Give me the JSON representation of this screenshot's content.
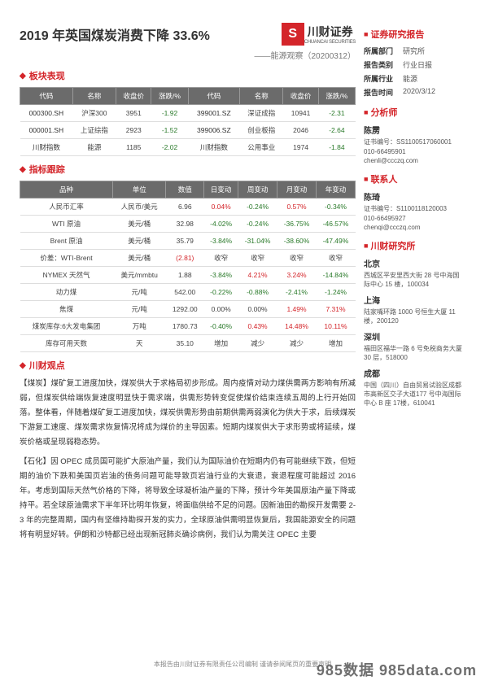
{
  "header": {
    "title": "2019 年英国煤炭消费下降 33.6%",
    "subtitle": "——能源观察（20200312）",
    "logo_char": "S",
    "logo_name": "川财证券",
    "logo_sub": "CHUANCAI SECURITIES"
  },
  "sections": {
    "block_perf": "板块表现",
    "indicator": "指标跟踪",
    "viewpoint": "川财观点"
  },
  "table1": {
    "headers": [
      "代码",
      "名称",
      "收盘价",
      "涨跌/%",
      "代码",
      "名称",
      "收盘价",
      "涨跌/%"
    ],
    "rows": [
      [
        "000300.SH",
        "沪深300",
        "3951",
        "-1.92",
        "399001.SZ",
        "深证成指",
        "10941",
        "-2.31"
      ],
      [
        "000001.SH",
        "上证综指",
        "2923",
        "-1.52",
        "399006.SZ",
        "创业板指",
        "2046",
        "-2.64"
      ],
      [
        "川财指数",
        "能源",
        "1185",
        "-2.02",
        "川财指数",
        "公用事业",
        "1974",
        "-1.84"
      ]
    ]
  },
  "table2": {
    "headers": [
      "品种",
      "单位",
      "数值",
      "日变动",
      "周变动",
      "月变动",
      "年变动"
    ],
    "rows": [
      {
        "c": [
          "人民币汇率",
          "人民币/美元",
          "6.96",
          "0.04%",
          "-0.24%",
          "0.57%",
          "-0.34%"
        ],
        "cls": [
          "",
          "",
          "",
          "pos",
          "neg",
          "pos",
          "neg"
        ]
      },
      {
        "c": [
          "WTI 原油",
          "美元/桶",
          "32.98",
          "-4.02%",
          "-0.24%",
          "-36.75%",
          "-46.57%"
        ],
        "cls": [
          "",
          "",
          "",
          "neg",
          "neg",
          "neg",
          "neg"
        ]
      },
      {
        "c": [
          "Brent 原油",
          "美元/桶",
          "35.79",
          "-3.84%",
          "-31.04%",
          "-38.60%",
          "-47.49%"
        ],
        "cls": [
          "",
          "",
          "",
          "neg",
          "neg",
          "neg",
          "neg"
        ]
      },
      {
        "c": [
          "价差：WTI-Brent",
          "美元/桶",
          "(2.81)",
          "收窄",
          "收窄",
          "收窄",
          "收窄"
        ],
        "cls": [
          "",
          "",
          "pos",
          "",
          "",
          "",
          ""
        ]
      },
      {
        "c": [
          "NYMEX 天然气",
          "美元/mmbtu",
          "1.88",
          "-3.84%",
          "4.21%",
          "3.24%",
          "-14.84%"
        ],
        "cls": [
          "",
          "",
          "",
          "neg",
          "pos",
          "pos",
          "neg"
        ]
      },
      {
        "c": [
          "动力煤",
          "元/吨",
          "542.00",
          "-0.22%",
          "-0.88%",
          "-2.41%",
          "-1.24%"
        ],
        "cls": [
          "",
          "",
          "",
          "neg",
          "neg",
          "neg",
          "neg"
        ]
      },
      {
        "c": [
          "焦煤",
          "元/吨",
          "1292.00",
          "0.00%",
          "0.00%",
          "1.49%",
          "7.31%"
        ],
        "cls": [
          "",
          "",
          "",
          "",
          "",
          "pos",
          "pos"
        ]
      },
      {
        "c": [
          "煤炭库存:6大发电集团",
          "万吨",
          "1780.73",
          "-0.40%",
          "0.43%",
          "14.48%",
          "10.11%"
        ],
        "cls": [
          "",
          "",
          "",
          "neg",
          "pos",
          "pos",
          "pos"
        ]
      },
      {
        "c": [
          "库存可用天数",
          "天",
          "35.10",
          "增加",
          "减少",
          "减少",
          "增加"
        ],
        "cls": [
          "",
          "",
          "",
          "",
          "",
          "",
          ""
        ]
      }
    ]
  },
  "viewpoint": {
    "p1": "【煤炭】煤矿复工进度加快，煤炭供大于求格局初步形成。周内疫情对动力煤供需两方影响有所减弱，但煤炭供给端恢复速度明显快于需求端，供需形势转变促使煤价结束连续五周的上行开始回落。整体看，伴随着煤矿复工进度加快，煤炭供需形势由前期供需两弱演化为供大于求，后续煤炭下游复工速度、煤炭需求恢复情况将成为煤价的主导因素。短期内煤炭供大于求形势或将延续，煤炭价格或呈现弱稳态势。",
    "p2": "【石化】因 OPEC 成员国可能扩大原油产量，我们认为国际油价在短期内仍有可能继续下跌，但短期的油价下跌和美国页岩油的债务问题可能导致页岩油行业的大衰退，衰退程度可能超过 2016 年。考虑到国际天然气价格的下降，将导致全球凝析油产量的下降，预计今年美国原油产量下降或持平。若全球原油需求下半年环比明年恢复，将面临供给不足的问题。因新油田的勘探开发需要 2-3 年的完整周期，国内有坚维持勘探开发的实力，全球原油供需明显恢复后，我国能源安全的问题将有明显好转。伊朗和沙特都已经出现新冠肺炎确诊病例，我们认为需关注 OPEC 主要"
  },
  "sidebar": {
    "report_title": "证券研究报告",
    "meta": [
      {
        "label": "所属部门",
        "val": "研究所"
      },
      {
        "label": "报告类别",
        "val": "行业日报"
      },
      {
        "label": "所属行业",
        "val": "能源"
      },
      {
        "label": "报告时间",
        "val": "2020/3/12"
      }
    ],
    "analyst_title": "分析师",
    "analyst": {
      "name": "陈雳",
      "lines": [
        "证书编号：SS1100517060001",
        "010-66495901",
        "chenli@ccczq.com"
      ]
    },
    "contact_title": "联系人",
    "contact": {
      "name": "陈琦",
      "lines": [
        "证书编号：S1100118120003",
        "010-66495927",
        "chenqi@ccczq.com"
      ]
    },
    "inst_title": "川财研究所",
    "offices": [
      {
        "city": "北京",
        "addr": "西城区平安里西大街 28 号中海国际中心 15 楼，100034"
      },
      {
        "city": "上海",
        "addr": "陆家嘴环路 1000 号恒生大厦 11 楼，200120"
      },
      {
        "city": "深圳",
        "addr": "福田区福华一路 6 号免税商务大厦 30 层，518000"
      },
      {
        "city": "成都",
        "addr": "中国（四川）自由贸易试验区成都市高新区交子大道177 号中海国际中心 B 座 17楼，610041"
      }
    ]
  },
  "footer": "本报告由川财证券有限责任公司编制 谨请参阅尾页的重要声明",
  "watermark": "985数据 985data.com"
}
